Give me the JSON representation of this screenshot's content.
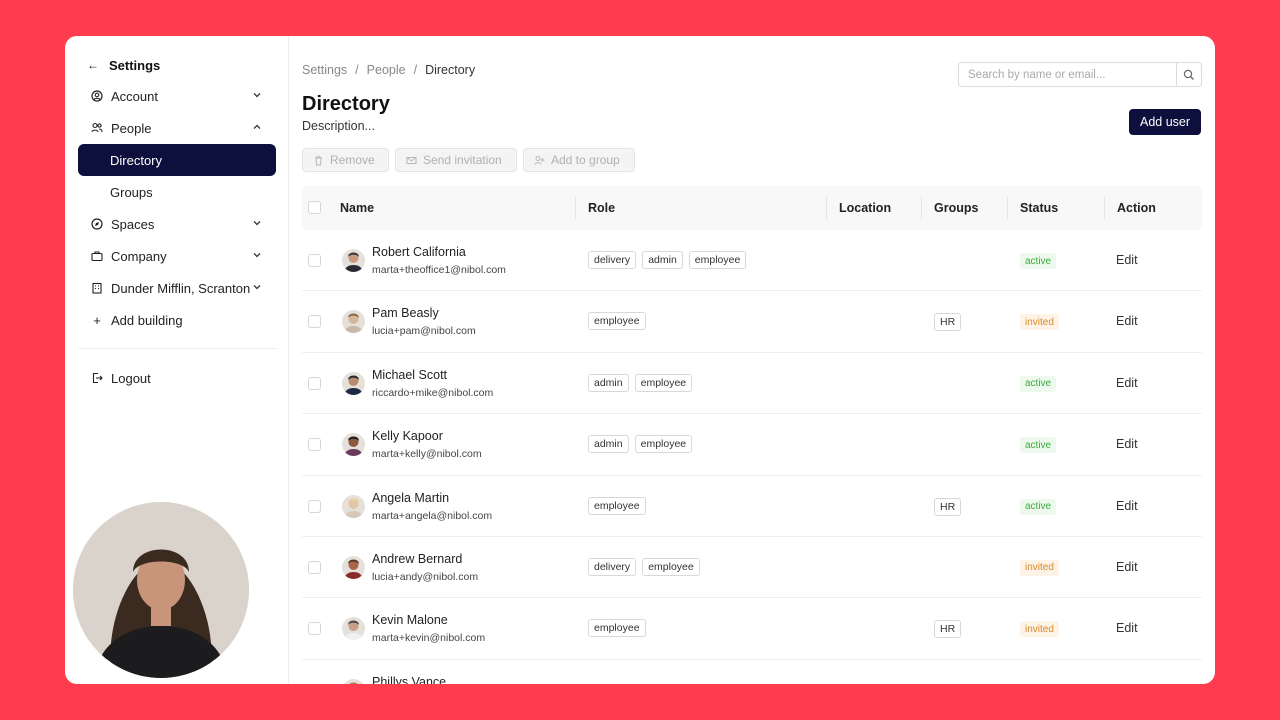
{
  "sidebar": {
    "back_label": "Settings",
    "items": [
      {
        "label": "Account",
        "icon": "user-circle-icon",
        "expanded": false
      },
      {
        "label": "People",
        "icon": "people-icon",
        "expanded": true
      },
      {
        "label": "Directory",
        "active": true
      },
      {
        "label": "Groups"
      },
      {
        "label": "Spaces",
        "icon": "compass-icon",
        "expanded": false
      },
      {
        "label": "Company",
        "icon": "briefcase-icon",
        "expanded": false
      },
      {
        "label": "Dunder Mifflin, Scranton",
        "icon": "building-icon",
        "expanded": false
      },
      {
        "label": "Add building",
        "icon": "plus-icon"
      }
    ],
    "logout_label": "Logout"
  },
  "breadcrumb": [
    "Settings",
    "People",
    "Directory"
  ],
  "search": {
    "placeholder": "Search by name or email..."
  },
  "page": {
    "title": "Directory",
    "description": "Description..."
  },
  "add_user_label": "Add user",
  "bulk_actions": {
    "remove": "Remove",
    "send_invitation": "Send invitation",
    "add_to_group": "Add to group"
  },
  "table": {
    "columns": {
      "name": "Name",
      "role": "Role",
      "location": "Location",
      "groups": "Groups",
      "status": "Status",
      "action": "Action"
    },
    "edit_label": "Edit",
    "rows": [
      {
        "name": "Robert California",
        "email": "marta+theoffice1@nibol.com",
        "roles": [
          "delivery",
          "admin",
          "employee"
        ],
        "groups": "",
        "status": "active"
      },
      {
        "name": "Pam Beasly",
        "email": "lucia+pam@nibol.com",
        "roles": [
          "employee"
        ],
        "groups": "HR",
        "status": "invited"
      },
      {
        "name": "Michael Scott",
        "email": "riccardo+mike@nibol.com",
        "roles": [
          "admin",
          "employee"
        ],
        "groups": "",
        "status": "active"
      },
      {
        "name": "Kelly Kapoor",
        "email": "marta+kelly@nibol.com",
        "roles": [
          "admin",
          "employee"
        ],
        "groups": "",
        "status": "active"
      },
      {
        "name": "Angela Martin",
        "email": "marta+angela@nibol.com",
        "roles": [
          "employee"
        ],
        "groups": "HR",
        "status": "active"
      },
      {
        "name": "Andrew Bernard",
        "email": "lucia+andy@nibol.com",
        "roles": [
          "delivery",
          "employee"
        ],
        "groups": "",
        "status": "invited"
      },
      {
        "name": "Kevin Malone",
        "email": "marta+kevin@nibol.com",
        "roles": [
          "employee"
        ],
        "groups": "HR",
        "status": "invited"
      },
      {
        "name": "Phillys Vance",
        "email": "",
        "roles": [],
        "groups": "",
        "status": ""
      }
    ]
  },
  "help_label": "?",
  "colors": {
    "background": "#ff3b50",
    "primary": "#0d0f3c",
    "active_status": "#3daa3d",
    "invited_status": "#d98a2a"
  }
}
